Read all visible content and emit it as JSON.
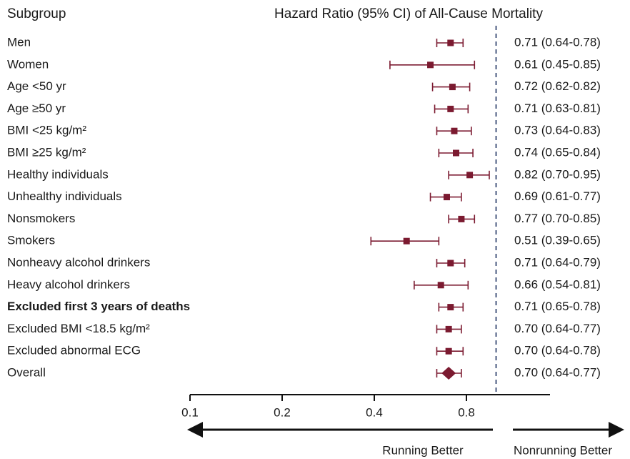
{
  "chart_data": {
    "type": "forest",
    "title": "Hazard Ratio (95%  CI) of All-Cause Mortality",
    "column_header": "Subgroup",
    "xscale": "log",
    "xlim": [
      0.1,
      1.5
    ],
    "xticks": [
      0.1,
      0.2,
      0.4,
      0.8
    ],
    "reference_line": 1,
    "color": "#7b1a30",
    "left_label": "Running Better",
    "right_label": "Nonrunning Better",
    "rows": [
      {
        "name": "Men",
        "hr": 0.71,
        "lo": 0.64,
        "hi": 0.78,
        "label": "0.71 (0.64-0.78)"
      },
      {
        "name": "Women",
        "hr": 0.61,
        "lo": 0.45,
        "hi": 0.85,
        "label": "0.61 (0.45-0.85)"
      },
      {
        "name": "Age <50 yr",
        "hr": 0.72,
        "lo": 0.62,
        "hi": 0.82,
        "label": "0.72 (0.62-0.82)"
      },
      {
        "name": "Age ≥50 yr",
        "hr": 0.71,
        "lo": 0.63,
        "hi": 0.81,
        "label": "0.71 (0.63-0.81)"
      },
      {
        "name": "BMI <25 kg/m²",
        "hr": 0.73,
        "lo": 0.64,
        "hi": 0.83,
        "label": "0.73 (0.64-0.83)"
      },
      {
        "name": "BMI ≥25 kg/m²",
        "hr": 0.74,
        "lo": 0.65,
        "hi": 0.84,
        "label": "0.74 (0.65-0.84)"
      },
      {
        "name": "Healthy individuals",
        "hr": 0.82,
        "lo": 0.7,
        "hi": 0.95,
        "label": "0.82 (0.70-0.95)"
      },
      {
        "name": "Unhealthy individuals",
        "hr": 0.69,
        "lo": 0.61,
        "hi": 0.77,
        "label": "0.69 (0.61-0.77)"
      },
      {
        "name": "Nonsmokers",
        "hr": 0.77,
        "lo": 0.7,
        "hi": 0.85,
        "label": "0.77 (0.70-0.85)"
      },
      {
        "name": "Smokers",
        "hr": 0.51,
        "lo": 0.39,
        "hi": 0.65,
        "label": "0.51 (0.39-0.65)"
      },
      {
        "name": "Nonheavy alcohol drinkers",
        "hr": 0.71,
        "lo": 0.64,
        "hi": 0.79,
        "label": "0.71 (0.64-0.79)"
      },
      {
        "name": "Heavy alcohol drinkers",
        "hr": 0.66,
        "lo": 0.54,
        "hi": 0.81,
        "label": "0.66 (0.54-0.81)"
      },
      {
        "name": "Excluded first 3 years of deaths",
        "hr": 0.71,
        "lo": 0.65,
        "hi": 0.78,
        "label": "0.71 (0.65-0.78)",
        "emphasis": "bold"
      },
      {
        "name": "Excluded BMI <18.5 kg/m²",
        "hr": 0.7,
        "lo": 0.64,
        "hi": 0.77,
        "label": "0.70 (0.64-0.77)"
      },
      {
        "name": "Excluded abnormal ECG",
        "hr": 0.7,
        "lo": 0.64,
        "hi": 0.78,
        "label": "0.70 (0.64-0.78)"
      }
    ],
    "summary": {
      "name": "Overall",
      "hr": 0.7,
      "lo": 0.64,
      "hi": 0.77,
      "label": "0.70 (0.64-0.77)"
    }
  }
}
